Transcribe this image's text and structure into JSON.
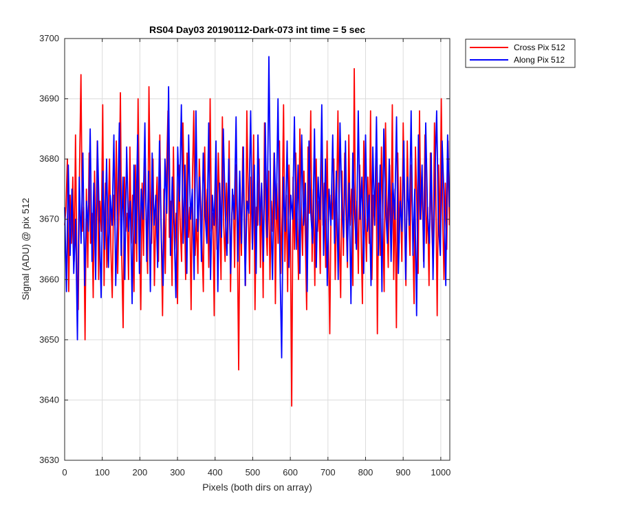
{
  "chart_data": {
    "type": "line",
    "title": "RS04 Day03 20190112-Dark-073 int time = 5 sec",
    "xlabel": "Pixels (both dirs on array)",
    "ylabel": "Signal (ADU) @ pix 512",
    "xlim": [
      0,
      1024
    ],
    "ylim": [
      3630,
      3700
    ],
    "xticks": [
      0,
      100,
      200,
      300,
      400,
      500,
      600,
      700,
      800,
      900,
      1000
    ],
    "yticks": [
      3630,
      3640,
      3650,
      3660,
      3670,
      3680,
      3690,
      3700
    ],
    "grid": true,
    "legend_position": "outside-top-right",
    "series": [
      {
        "name": "Cross Pix 512",
        "color": "#ff0000",
        "x_range": [
          0,
          1023
        ],
        "values": [
          3669,
          3672,
          3680,
          3658,
          3674,
          3666,
          3677,
          3663,
          3684,
          3661,
          3655,
          3679,
          3694,
          3668,
          3672,
          3650,
          3675,
          3662,
          3681,
          3666,
          3671,
          3657,
          3678,
          3664,
          3683,
          3660,
          3673,
          3668,
          3689,
          3659,
          3676,
          3662,
          3670,
          3680,
          3665,
          3657,
          3674,
          3669,
          3683,
          3661,
          3672,
          3691,
          3664,
          3652,
          3677,
          3668,
          3671,
          3660,
          3682,
          3666,
          3674,
          3658,
          3679,
          3663,
          3690,
          3669,
          3655,
          3676,
          3664,
          3681,
          3670,
          3661,
          3692,
          3673,
          3666,
          3680,
          3659,
          3671,
          3677,
          3663,
          3684,
          3668,
          3654,
          3675,
          3661,
          3678,
          3688,
          3667,
          3673,
          3659,
          3682,
          3665,
          3671,
          3656,
          3679,
          3669,
          3663,
          3686,
          3674,
          3660,
          3681,
          3667,
          3672,
          3655,
          3677,
          3688,
          3664,
          3670,
          3661,
          3680,
          3673,
          3666,
          3658,
          3682,
          3669,
          3675,
          3662,
          3690,
          3668,
          3671,
          3654,
          3678,
          3665,
          3681,
          3672,
          3660,
          3687,
          3669,
          3663,
          3676,
          3666,
          3683,
          3658,
          3671,
          3674,
          3662,
          3679,
          3667,
          3645,
          3675,
          3664,
          3682,
          3670,
          3659,
          3688,
          3673,
          3661,
          3677,
          3666,
          3684,
          3655,
          3672,
          3669,
          3680,
          3662,
          3675,
          3657,
          3686,
          3670,
          3664,
          3678,
          3660,
          3673,
          3668,
          3681,
          3656,
          3676,
          3666,
          3683,
          3661,
          3671,
          3689,
          3663,
          3674,
          3658,
          3679,
          3669,
          3639,
          3677,
          3665,
          3681,
          3670,
          3660,
          3685,
          3672,
          3664,
          3678,
          3667,
          3655,
          3682,
          3671,
          3688,
          3663,
          3675,
          3659,
          3680,
          3668,
          3673,
          3661,
          3686,
          3669,
          3676,
          3662,
          3683,
          3666,
          3651,
          3674,
          3670,
          3680,
          3660,
          3672,
          3688,
          3667,
          3657,
          3678,
          3664,
          3681,
          3670,
          3662,
          3684,
          3669,
          3675,
          3659,
          3695,
          3666,
          3673,
          3661,
          3679,
          3668,
          3656,
          3683,
          3671,
          3663,
          3677,
          3666,
          3688,
          3660,
          3674,
          3669,
          3681,
          3651,
          3676,
          3664,
          3682,
          3670,
          3658,
          3686,
          3672,
          3662,
          3679,
          3667,
          3689,
          3660,
          3675,
          3652,
          3681,
          3666,
          3677,
          3663,
          3686,
          3670,
          3659,
          3683,
          3671,
          3664,
          3679,
          3668,
          3656,
          3682,
          3673,
          3661,
          3688,
          3670,
          3677,
          3663,
          3684,
          3666,
          3672,
          3659,
          3681,
          3669,
          3662,
          3686,
          3674,
          3654,
          3679,
          3667,
          3690,
          3671,
          3660,
          3676,
          3665,
          3683,
          3669
        ]
      },
      {
        "name": "Along Pix 512",
        "color": "#0000ff",
        "x_range": [
          0,
          1023
        ],
        "values": [
          3672,
          3658,
          3679,
          3664,
          3675,
          3661,
          3670,
          3650,
          3677,
          3666,
          3681,
          3659,
          3673,
          3668,
          3685,
          3663,
          3676,
          3660,
          3683,
          3670,
          3657,
          3678,
          3665,
          3680,
          3662,
          3674,
          3669,
          3684,
          3659,
          3671,
          3686,
          3664,
          3677,
          3660,
          3682,
          3668,
          3673,
          3656,
          3679,
          3666,
          3684,
          3661,
          3675,
          3670,
          3686,
          3663,
          3678,
          3658,
          3681,
          3669,
          3674,
          3662,
          3683,
          3667,
          3659,
          3680,
          3671,
          3692,
          3664,
          3677,
          3669,
          3657,
          3682,
          3673,
          3689,
          3666,
          3679,
          3661,
          3684,
          3670,
          3675,
          3660,
          3688,
          3668,
          3677,
          3663,
          3681,
          3671,
          3666,
          3686,
          3660,
          3674,
          3669,
          3683,
          3658,
          3676,
          3667,
          3685,
          3672,
          3664,
          3680,
          3661,
          3675,
          3670,
          3687,
          3663,
          3678,
          3666,
          3682,
          3659,
          3673,
          3671,
          3688,
          3665,
          3679,
          3661,
          3684,
          3669,
          3676,
          3663,
          3686,
          3667,
          3697,
          3672,
          3660,
          3681,
          3670,
          3690,
          3664,
          3647,
          3677,
          3668,
          3683,
          3662,
          3674,
          3670,
          3687,
          3665,
          3679,
          3661,
          3684,
          3669,
          3676,
          3658,
          3683,
          3671,
          3666,
          3685,
          3662,
          3677,
          3670,
          3689,
          3664,
          3680,
          3659,
          3675,
          3669,
          3684,
          3666,
          3678,
          3660,
          3686,
          3672,
          3667,
          3683,
          3663,
          3676,
          3656,
          3681,
          3671,
          3665,
          3688,
          3670,
          3677,
          3661,
          3684,
          3668,
          3674,
          3659,
          3682,
          3669,
          3687,
          3664,
          3679,
          3658,
          3685,
          3672,
          3666,
          3680,
          3663,
          3676,
          3670,
          3687,
          3661,
          3673,
          3668,
          3683,
          3660,
          3677,
          3669,
          3688,
          3664,
          3675,
          3654,
          3684,
          3670,
          3679,
          3662,
          3686,
          3671,
          3666,
          3681,
          3660,
          3676,
          3688,
          3669,
          3664,
          3683,
          3674,
          3659,
          3684,
          3672
        ]
      }
    ]
  }
}
